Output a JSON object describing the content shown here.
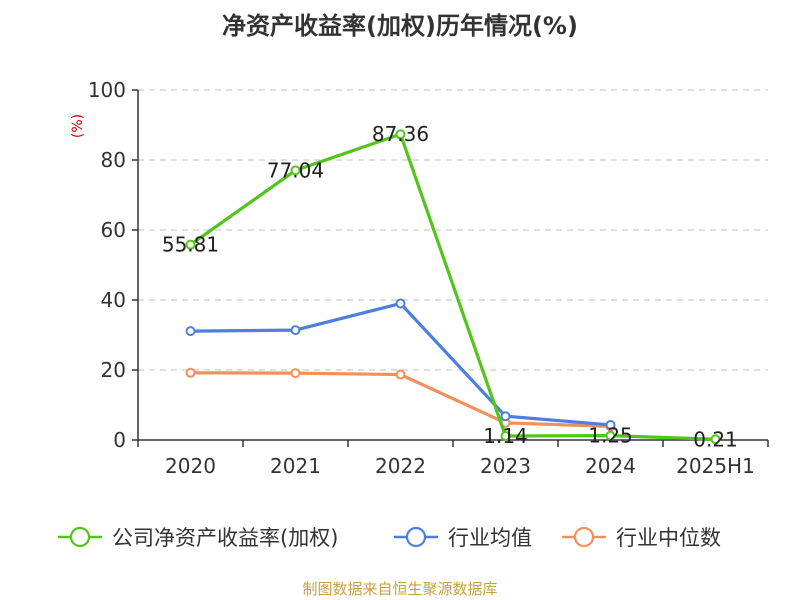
{
  "chart_data": {
    "type": "line",
    "title": "净资产收益率(加权)历年情况(%)",
    "ylabel": "(%)",
    "xlabel": "",
    "categories": [
      "2020",
      "2021",
      "2022",
      "2023",
      "2024",
      "2025H1"
    ],
    "ylim": [
      0,
      100
    ],
    "yticks": [
      "0",
      "20",
      "40",
      "60",
      "80",
      "100"
    ],
    "grid": true,
    "legend_position": "bottom",
    "series": [
      {
        "name": "公司净资产收益率(加权)",
        "values": [
          55.81,
          77.04,
          87.36,
          1.14,
          1.25,
          0.21
        ],
        "labels": [
          "55.81",
          "77.04",
          "87.36",
          "1.14",
          "1.25",
          "0.21"
        ],
        "color": "#52c41a"
      },
      {
        "name": "行业均值",
        "values": [
          31.1,
          31.4,
          39.0,
          6.8,
          4.3,
          null
        ],
        "color": "#4e7fdf"
      },
      {
        "name": "行业中位数",
        "values": [
          19.2,
          19.1,
          18.7,
          4.9,
          3.9,
          null
        ],
        "color": "#f58f5a"
      }
    ]
  },
  "colors": {
    "title": "#333333",
    "unit": "#cc0000",
    "axis": "#333333",
    "grid": "#cccccc",
    "footer": "#c8a046"
  },
  "footer": "制图数据来自恒生聚源数据库"
}
